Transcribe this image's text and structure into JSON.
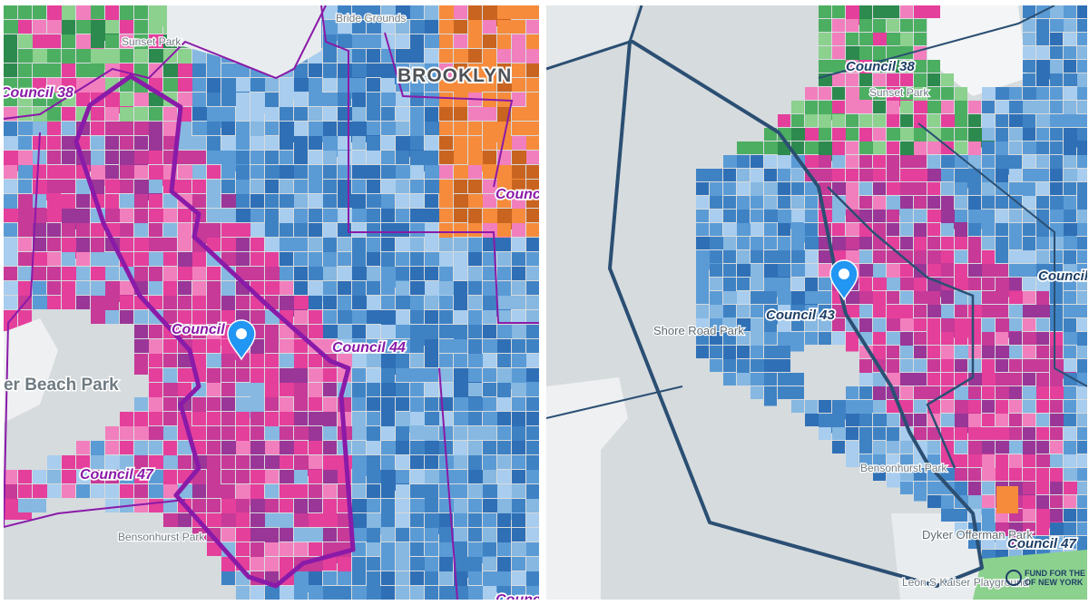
{
  "colors": {
    "water": "#d6dbde",
    "land": "#eef0f1",
    "park": "#e9ecee",
    "tracts": [
      "#2f6fb6",
      "#3f82c4",
      "#5b9bd5",
      "#86b8e2",
      "#a8cdee",
      "#e53f9c",
      "#c73a98",
      "#f27fbd",
      "#9a3697",
      "#4cae61",
      "#2d8a4e",
      "#8cd18e",
      "#f68b3c",
      "#c96420"
    ],
    "district_line_left": "#8a1aa8",
    "district_line_right": "#2b4f73",
    "marker": "#2196f3"
  },
  "left_map": {
    "borough": "BROOKLYN",
    "places": [
      "Sunset Park",
      "Pier Beach Park",
      "Bensonhurst Park",
      "Bride Grounds"
    ],
    "council_labels": [
      "Council 38",
      "Council 44",
      "Council",
      "Council 47",
      "Council",
      "Council"
    ],
    "marker_icon": "map-pin-icon"
  },
  "right_map": {
    "places": [
      "Shore Road Park",
      "Sunset Park",
      "Bensonhurst Park",
      "Dyker Offerman Park",
      "Leon S Kaiser Playground"
    ],
    "council_labels": [
      "Council 38",
      "Council 43",
      "Council",
      "Council 47"
    ],
    "attribution": [
      "FUND FOR THE CITY",
      "OF NEW YORK"
    ],
    "marker_icon": "map-pin-icon"
  }
}
